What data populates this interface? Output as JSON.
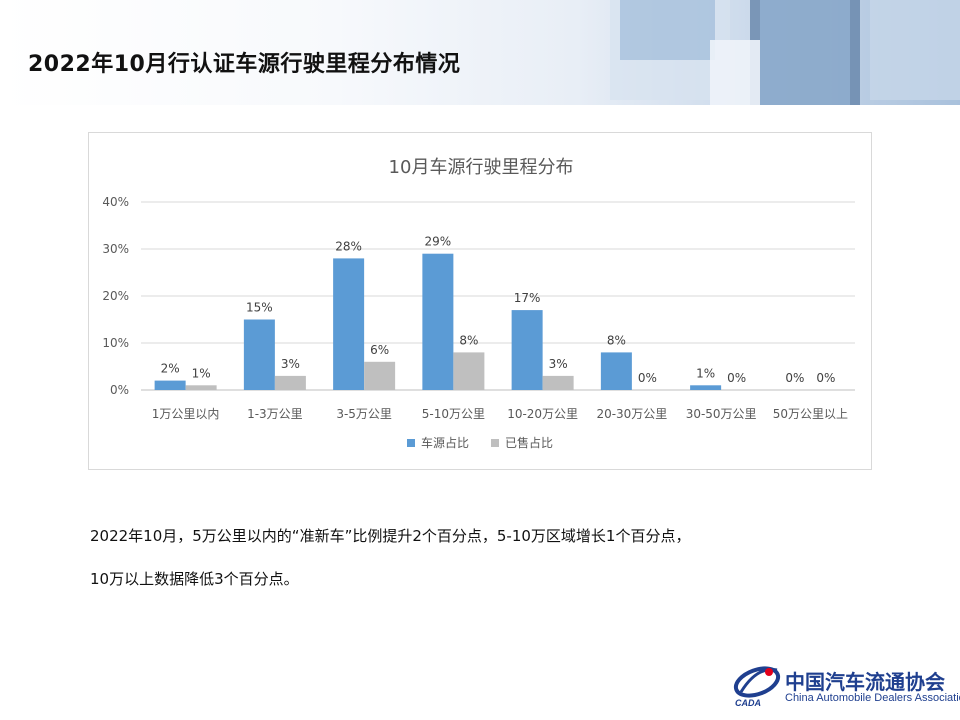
{
  "header": {
    "title": "2022年10月行认证车源行驶里程分布情况"
  },
  "chart_data": {
    "type": "bar",
    "title": "10月车源行驶里程分布",
    "categories": [
      "1万公里以内",
      "1-3万公里",
      "3-5万公里",
      "5-10万公里",
      "10-20万公里",
      "20-30万公里",
      "30-50万公里",
      "50万公里以上"
    ],
    "series": [
      {
        "name": "车源占比",
        "values": [
          2,
          15,
          28,
          29,
          17,
          8,
          1,
          0
        ],
        "color": "#5b9bd5"
      },
      {
        "name": "已售占比",
        "values": [
          1,
          3,
          6,
          8,
          3,
          0,
          0,
          0
        ],
        "color": "#bfbfbf"
      }
    ],
    "data_labels": [
      [
        "2%",
        "15%",
        "28%",
        "29%",
        "17%",
        "8%",
        "1%",
        "0%"
      ],
      [
        "1%",
        "3%",
        "6%",
        "8%",
        "3%",
        "0%",
        "0%",
        "0%"
      ]
    ],
    "yticks": [
      "0%",
      "10%",
      "20%",
      "30%",
      "40%"
    ],
    "ylim": [
      0,
      40
    ],
    "grid": true,
    "legend_position": "bottom"
  },
  "description": {
    "line1": "2022年10月，5万公里以内的“准新车”比例提升2个百分点，5-10万区域增长1个百分点，",
    "line2": "10万以上数据降低3个百分点。"
  },
  "logo": {
    "cn": "中国汽车流通协会",
    "en": "China Automobile Dealers Association",
    "mark": "CADA"
  }
}
